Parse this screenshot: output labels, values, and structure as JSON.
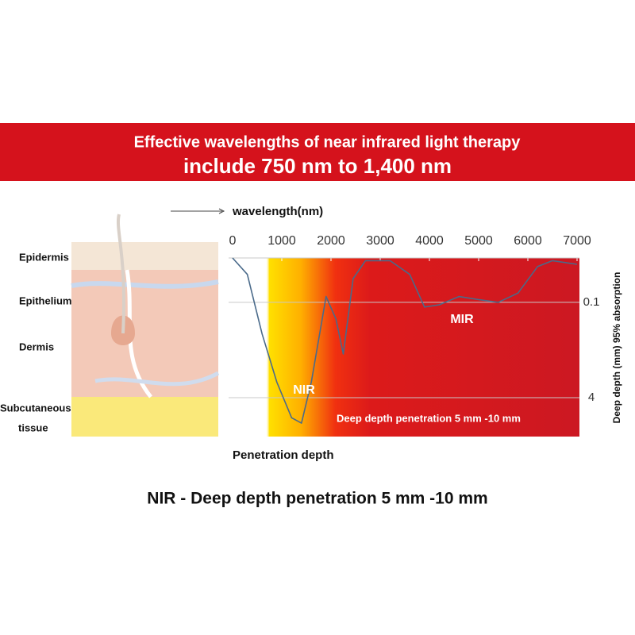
{
  "chart_data": {
    "type": "line",
    "title": "Effective wavelengths of near infrared light therapy",
    "subtitle": "include 750 nm to 1,400 nm",
    "x_label": "wavelength(nm)",
    "y_label": "Deep depth (mm) 95% absorption",
    "bottom_label": "Penetration depth",
    "caption": "NIR - Deep depth penetration 5 mm -10 mm",
    "layers": [
      "Epidermis",
      "Epithelium",
      "Dermis",
      "Subcutaneous",
      "tissue"
    ],
    "annotations": [
      "NIR",
      "MIR",
      "Deep depth penetration 5 mm -10 mm"
    ],
    "x": [
      0,
      300,
      600,
      900,
      1200,
      1400,
      1600,
      1900,
      2100,
      2250,
      2450,
      2700,
      3200,
      3600,
      3900,
      4200,
      4600,
      5000,
      5400,
      5800,
      6200,
      6500,
      7000
    ],
    "values": [
      0.018,
      0.034,
      0.34,
      2.2,
      8.7,
      10.7,
      2.2,
      0.08,
      0.19,
      0.74,
      0.04,
      0.02,
      0.02,
      0.034,
      0.12,
      0.11,
      0.08,
      0.09,
      0.1,
      0.07,
      0.025,
      0.02,
      0.023
    ],
    "color": "#4a6a8a",
    "xlim": [
      0,
      7000
    ],
    "xticks": [
      0,
      1000,
      2000,
      3000,
      4000,
      5000,
      6000,
      7000
    ],
    "ylim": [
      0.018,
      18
    ],
    "yticks": [
      0.1,
      4
    ],
    "log_scale": true,
    "y_inverted": true,
    "grid": true
  }
}
